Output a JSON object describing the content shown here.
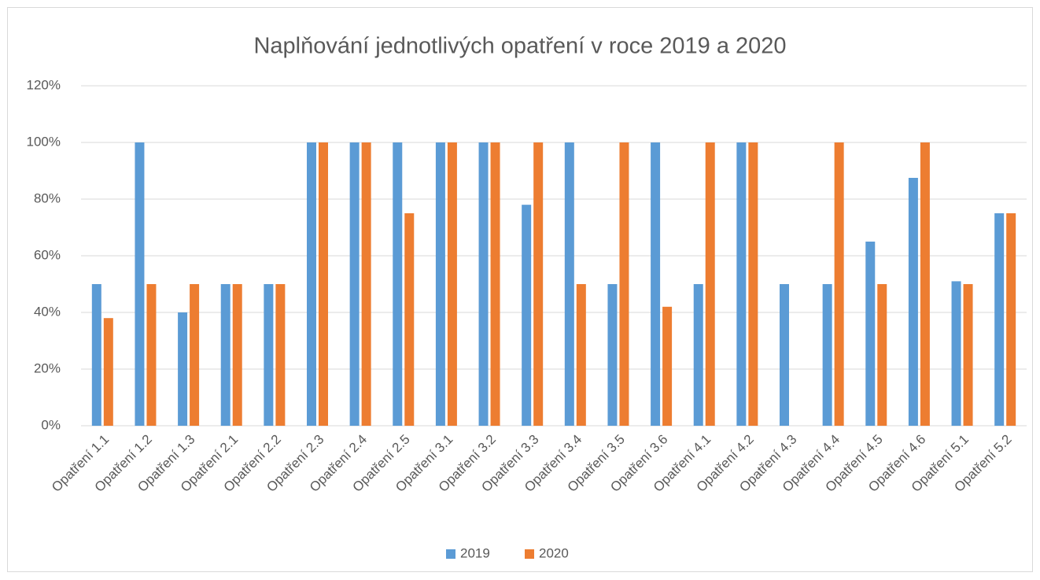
{
  "chart_data": {
    "type": "bar",
    "title": "Naplňování jednotlivých opatření v roce 2019 a 2020",
    "categories": [
      "Opatření 1.1",
      "Opatření 1.2",
      "Opatření 1.3",
      "Opatření 2.1",
      "Opatření 2.2",
      "Opatření 2.3",
      "Opatření 2.4",
      "Opatření 2.5",
      "Opatření 3.1",
      "Opatření 3.2",
      "Opatření 3.3",
      "Opatření 3.4",
      "Opatření 3.5",
      "Opatření 3.6",
      "Opatření 4.1",
      "Opatření 4.2",
      "Opatření 4.3",
      "Opatření 4.4",
      "Opatření 4.5",
      "Opatření 4.6",
      "Opatření 5.1",
      "Opatření 5.2"
    ],
    "series": [
      {
        "name": "2019",
        "color": "#5b9bd5",
        "values": [
          50,
          100,
          40,
          50,
          50,
          100,
          100,
          100,
          100,
          100,
          78,
          100,
          50,
          100,
          50,
          100,
          50,
          50,
          65,
          87.5,
          51,
          75
        ]
      },
      {
        "name": "2020",
        "color": "#ed7d31",
        "values": [
          38,
          50,
          50,
          50,
          50,
          100,
          100,
          75,
          100,
          100,
          100,
          50,
          100,
          42,
          100,
          100,
          0,
          100,
          50,
          100,
          50,
          75
        ]
      }
    ],
    "ylim": [
      0,
      120
    ],
    "yticks": [
      {
        "value": 0,
        "label": "0%"
      },
      {
        "value": 20,
        "label": "20%"
      },
      {
        "value": 40,
        "label": "40%"
      },
      {
        "value": 60,
        "label": "60%"
      },
      {
        "value": 80,
        "label": "80%"
      },
      {
        "value": 100,
        "label": "100%"
      },
      {
        "value": 120,
        "label": "120%"
      }
    ],
    "grid": true,
    "legend": "bottom"
  }
}
